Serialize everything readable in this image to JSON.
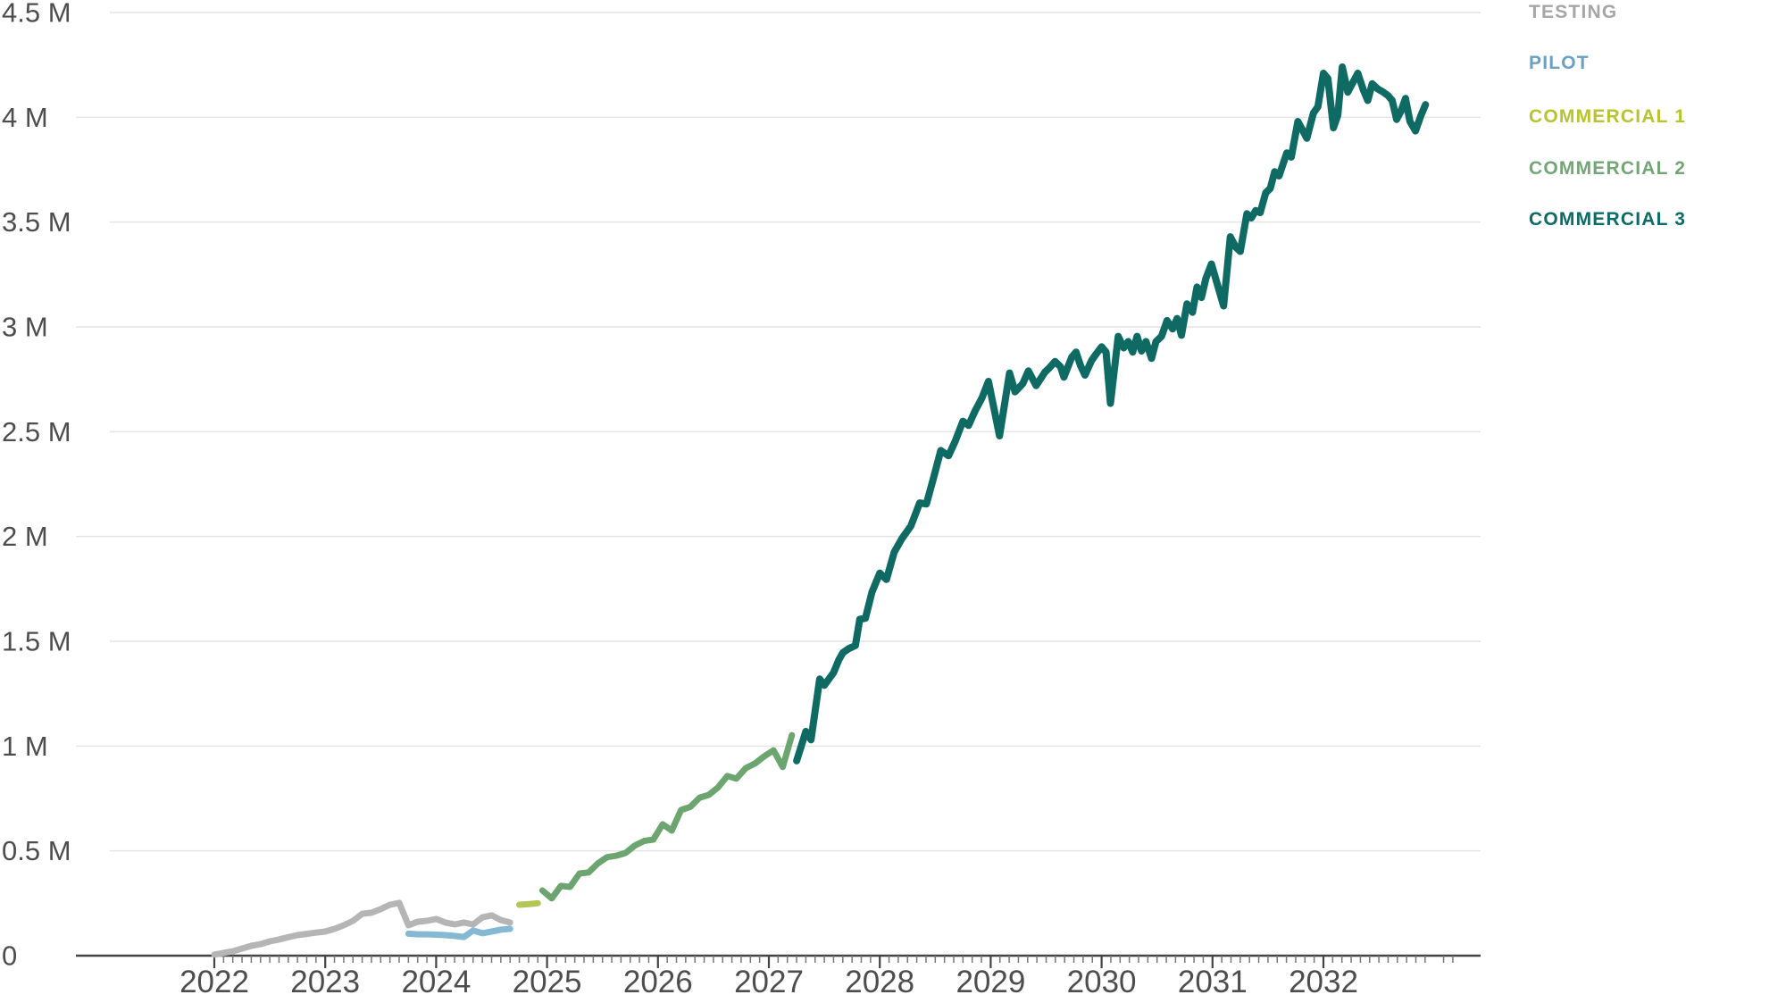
{
  "chart_data": {
    "type": "line",
    "title": "",
    "unit": "M",
    "grid": "horizontal",
    "legend_position": "top-right",
    "x_axis": {
      "label": "",
      "tick_years": [
        2022,
        2023,
        2024,
        2025,
        2026,
        2027,
        2028,
        2029,
        2030,
        2031,
        2032
      ],
      "minor_tick_interval": "1 month",
      "range_years": [
        2020.75,
        2033.1
      ]
    },
    "y_axis": {
      "label": "",
      "tick_labels": [
        "0",
        "0.5 M",
        "1 M",
        "1.5 M",
        "2 M",
        "2.5 M",
        "3 M",
        "3.5 M",
        "4 M",
        "4.5 M"
      ],
      "tick_values": [
        0,
        0.5,
        1,
        1.5,
        2,
        2.5,
        3,
        3.5,
        4,
        4.5
      ],
      "range": [
        0,
        4.5
      ]
    },
    "colors": {
      "grid_line": "#e4e4e4",
      "axis_line": "#444444",
      "minor_tick": "#777777",
      "major_tick": "#444444",
      "axis_label_text": "#4d4d4d"
    },
    "series": [
      {
        "name": "TESTING",
        "color": "#b5b5b5",
        "legend_color": "#a6a6a6",
        "points": [
          [
            2022.0,
            0.005
          ],
          [
            2022.083,
            0.013
          ],
          [
            2022.167,
            0.021
          ],
          [
            2022.25,
            0.034
          ],
          [
            2022.333,
            0.047
          ],
          [
            2022.417,
            0.055
          ],
          [
            2022.5,
            0.068
          ],
          [
            2022.583,
            0.077
          ],
          [
            2022.667,
            0.088
          ],
          [
            2022.75,
            0.098
          ],
          [
            2022.833,
            0.104
          ],
          [
            2022.917,
            0.11
          ],
          [
            2023.0,
            0.115
          ],
          [
            2023.083,
            0.128
          ],
          [
            2023.167,
            0.145
          ],
          [
            2023.25,
            0.166
          ],
          [
            2023.333,
            0.2
          ],
          [
            2023.417,
            0.205
          ],
          [
            2023.5,
            0.222
          ],
          [
            2023.583,
            0.243
          ],
          [
            2023.667,
            0.252
          ],
          [
            2023.75,
            0.145
          ],
          [
            2023.833,
            0.162
          ],
          [
            2023.917,
            0.166
          ],
          [
            2024.0,
            0.175
          ],
          [
            2024.083,
            0.158
          ],
          [
            2024.167,
            0.149
          ],
          [
            2024.25,
            0.158
          ],
          [
            2024.333,
            0.149
          ],
          [
            2024.417,
            0.183
          ],
          [
            2024.5,
            0.192
          ],
          [
            2024.583,
            0.17
          ],
          [
            2024.667,
            0.158
          ]
        ]
      },
      {
        "name": "PILOT",
        "color": "#85b9d3",
        "legend_color": "#6aa0c0",
        "points": [
          [
            2023.75,
            0.105
          ],
          [
            2023.833,
            0.102
          ],
          [
            2023.917,
            0.102
          ],
          [
            2024.0,
            0.1
          ],
          [
            2024.083,
            0.098
          ],
          [
            2024.167,
            0.094
          ],
          [
            2024.25,
            0.089
          ],
          [
            2024.333,
            0.12
          ],
          [
            2024.417,
            0.107
          ],
          [
            2024.5,
            0.115
          ],
          [
            2024.583,
            0.124
          ],
          [
            2024.667,
            0.128
          ]
        ]
      },
      {
        "name": "COMMERCIAL 1",
        "color": "#b3c656",
        "legend_color": "#b9c230",
        "points": [
          [
            2024.75,
            0.243
          ],
          [
            2024.833,
            0.246
          ],
          [
            2024.917,
            0.25
          ]
        ]
      },
      {
        "name": "COMMERCIAL 2",
        "color": "#6ca56f",
        "legend_color": "#74a576",
        "points": [
          [
            2024.958,
            0.311
          ],
          [
            2025.042,
            0.273
          ],
          [
            2025.125,
            0.333
          ],
          [
            2025.208,
            0.328
          ],
          [
            2025.292,
            0.392
          ],
          [
            2025.375,
            0.397
          ],
          [
            2025.458,
            0.44
          ],
          [
            2025.542,
            0.47
          ],
          [
            2025.625,
            0.477
          ],
          [
            2025.708,
            0.49
          ],
          [
            2025.792,
            0.526
          ],
          [
            2025.875,
            0.547
          ],
          [
            2025.958,
            0.554
          ],
          [
            2026.042,
            0.627
          ],
          [
            2026.125,
            0.597
          ],
          [
            2026.208,
            0.695
          ],
          [
            2026.292,
            0.71
          ],
          [
            2026.375,
            0.754
          ],
          [
            2026.458,
            0.767
          ],
          [
            2026.542,
            0.803
          ],
          [
            2026.625,
            0.857
          ],
          [
            2026.708,
            0.845
          ],
          [
            2026.792,
            0.895
          ],
          [
            2026.875,
            0.917
          ],
          [
            2026.958,
            0.951
          ],
          [
            2027.042,
            0.98
          ],
          [
            2027.125,
            0.9
          ],
          [
            2027.208,
            1.052
          ]
        ]
      },
      {
        "name": "COMMERCIAL 3",
        "color": "#0e6a63",
        "legend_color": "#0d6b66",
        "points": [
          [
            2027.25,
            0.93
          ],
          [
            2027.333,
            1.07
          ],
          [
            2027.38,
            1.03
          ],
          [
            2027.458,
            1.32
          ],
          [
            2027.5,
            1.29
          ],
          [
            2027.583,
            1.35
          ],
          [
            2027.63,
            1.41
          ],
          [
            2027.667,
            1.445
          ],
          [
            2027.72,
            1.465
          ],
          [
            2027.78,
            1.48
          ],
          [
            2027.82,
            1.605
          ],
          [
            2027.87,
            1.61
          ],
          [
            2027.93,
            1.735
          ],
          [
            2028.0,
            1.825
          ],
          [
            2028.06,
            1.795
          ],
          [
            2028.13,
            1.925
          ],
          [
            2028.2,
            1.99
          ],
          [
            2028.28,
            2.05
          ],
          [
            2028.36,
            2.16
          ],
          [
            2028.42,
            2.155
          ],
          [
            2028.48,
            2.27
          ],
          [
            2028.55,
            2.41
          ],
          [
            2028.62,
            2.385
          ],
          [
            2028.68,
            2.455
          ],
          [
            2028.75,
            2.55
          ],
          [
            2028.8,
            2.53
          ],
          [
            2028.86,
            2.6
          ],
          [
            2028.92,
            2.66
          ],
          [
            2028.98,
            2.74
          ],
          [
            2029.08,
            2.48
          ],
          [
            2029.17,
            2.78
          ],
          [
            2029.22,
            2.69
          ],
          [
            2029.29,
            2.73
          ],
          [
            2029.34,
            2.79
          ],
          [
            2029.41,
            2.72
          ],
          [
            2029.49,
            2.785
          ],
          [
            2029.53,
            2.805
          ],
          [
            2029.58,
            2.835
          ],
          [
            2029.63,
            2.81
          ],
          [
            2029.66,
            2.76
          ],
          [
            2029.73,
            2.855
          ],
          [
            2029.77,
            2.88
          ],
          [
            2029.81,
            2.815
          ],
          [
            2029.85,
            2.77
          ],
          [
            2029.91,
            2.84
          ],
          [
            2029.95,
            2.87
          ],
          [
            2030.0,
            2.905
          ],
          [
            2030.04,
            2.88
          ],
          [
            2030.08,
            2.635
          ],
          [
            2030.15,
            2.955
          ],
          [
            2030.2,
            2.9
          ],
          [
            2030.24,
            2.93
          ],
          [
            2030.28,
            2.88
          ],
          [
            2030.32,
            2.955
          ],
          [
            2030.36,
            2.885
          ],
          [
            2030.4,
            2.93
          ],
          [
            2030.45,
            2.85
          ],
          [
            2030.49,
            2.93
          ],
          [
            2030.54,
            2.955
          ],
          [
            2030.59,
            3.03
          ],
          [
            2030.64,
            2.99
          ],
          [
            2030.68,
            3.04
          ],
          [
            2030.72,
            2.96
          ],
          [
            2030.77,
            3.11
          ],
          [
            2030.82,
            3.07
          ],
          [
            2030.86,
            3.19
          ],
          [
            2030.9,
            3.14
          ],
          [
            2030.94,
            3.23
          ],
          [
            2030.99,
            3.3
          ],
          [
            2031.1,
            3.1
          ],
          [
            2031.16,
            3.43
          ],
          [
            2031.21,
            3.38
          ],
          [
            2031.25,
            3.36
          ],
          [
            2031.31,
            3.54
          ],
          [
            2031.35,
            3.52
          ],
          [
            2031.39,
            3.555
          ],
          [
            2031.43,
            3.545
          ],
          [
            2031.48,
            3.64
          ],
          [
            2031.52,
            3.66
          ],
          [
            2031.56,
            3.74
          ],
          [
            2031.6,
            3.72
          ],
          [
            2031.67,
            3.83
          ],
          [
            2031.71,
            3.81
          ],
          [
            2031.77,
            3.98
          ],
          [
            2031.81,
            3.94
          ],
          [
            2031.85,
            3.9
          ],
          [
            2031.91,
            4.02
          ],
          [
            2031.95,
            4.05
          ],
          [
            2032.0,
            4.21
          ],
          [
            2032.04,
            4.185
          ],
          [
            2032.09,
            3.95
          ],
          [
            2032.13,
            4.01
          ],
          [
            2032.17,
            4.24
          ],
          [
            2032.22,
            4.12
          ],
          [
            2032.27,
            4.17
          ],
          [
            2032.31,
            4.21
          ],
          [
            2032.36,
            4.13
          ],
          [
            2032.4,
            4.08
          ],
          [
            2032.44,
            4.16
          ],
          [
            2032.49,
            4.135
          ],
          [
            2032.54,
            4.12
          ],
          [
            2032.58,
            4.105
          ],
          [
            2032.62,
            4.08
          ],
          [
            2032.66,
            3.99
          ],
          [
            2032.7,
            4.03
          ],
          [
            2032.74,
            4.09
          ],
          [
            2032.78,
            3.98
          ],
          [
            2032.83,
            3.935
          ],
          [
            2032.88,
            4.01
          ],
          [
            2032.92,
            4.06
          ]
        ]
      }
    ]
  }
}
